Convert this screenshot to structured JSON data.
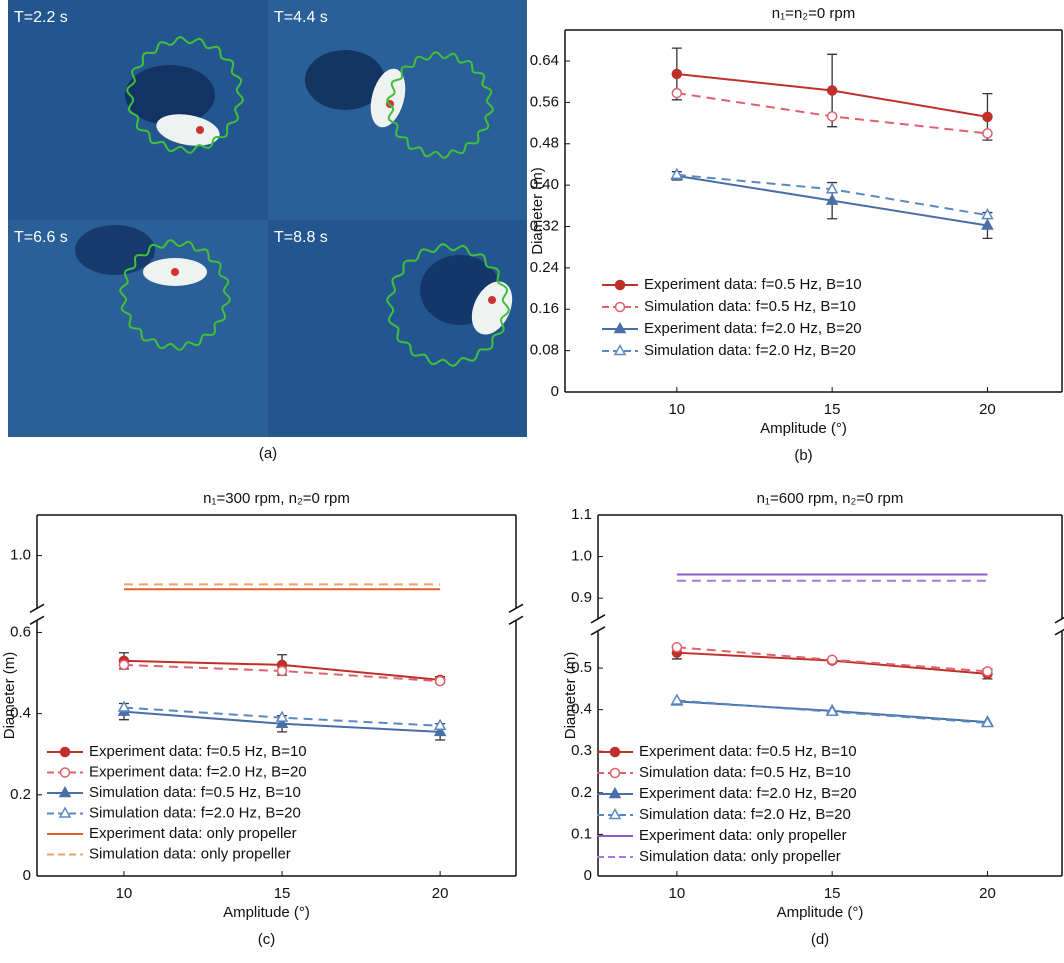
{
  "photo": {
    "labels": [
      "T=2.2 s",
      "T=4.4 s",
      "T=6.6 s",
      "T=8.8 s"
    ],
    "caption": "(a)"
  },
  "chart_data": [
    {
      "type": "line",
      "title": "n₁=n₂=0 rpm",
      "xlabel": "Amplitude (°)",
      "ylabel": "Diameter (m)",
      "caption": "(b)",
      "x": [
        10,
        15,
        20
      ],
      "xlim": [
        6.4,
        22.4
      ],
      "xticks": [
        10,
        15,
        20
      ],
      "ylim": [
        0,
        0.7
      ],
      "yticks": [
        0,
        0.08,
        0.16,
        0.24,
        0.32,
        {
          "value": 0.4,
          "label": "0.40"
        },
        0.48,
        0.56,
        0.64
      ],
      "series": [
        {
          "name": "Experiment data: f=0.5 Hz, B=10",
          "color": "#c0302a",
          "dash": false,
          "marker": "circle",
          "values": [
            0.615,
            0.583,
            0.532
          ],
          "errors": [
            0.05,
            0.07,
            0.045
          ]
        },
        {
          "name": "Simulation data: f=0.5 Hz, B=10",
          "color": "#e0606e",
          "dash": true,
          "marker": "circle-open",
          "values": [
            0.578,
            0.533,
            0.5
          ]
        },
        {
          "name": "Experiment data: f=2.0 Hz, B=20",
          "color": "#4a6ea6",
          "dash": false,
          "marker": "triangle",
          "values": [
            0.418,
            0.37,
            0.322
          ],
          "errors": [
            0.008,
            0.035,
            0.025
          ]
        },
        {
          "name": "Simulation data: f=2.0 Hz, B=20",
          "color": "#5b88c2",
          "dash": true,
          "marker": "triangle-open",
          "values": [
            0.42,
            0.392,
            0.342
          ]
        }
      ]
    },
    {
      "type": "line",
      "title": "n₁=300 rpm, n₂=0 rpm",
      "xlabel": "Amplitude (°)",
      "ylabel": "Diameter (m)",
      "caption": "(c)",
      "x": [
        10,
        15,
        20
      ],
      "xlim": [
        7.25,
        22.4
      ],
      "xticks": [
        10,
        15,
        20
      ],
      "ylim": [
        0,
        1.1
      ],
      "y_break": [
        0.62,
        0.88
      ],
      "yticks": [
        0,
        0.2,
        0.4,
        0.6,
        {
          "value": 1.0,
          "label": "1.0"
        }
      ],
      "series": [
        {
          "name": "Experiment data: f=0.5 Hz, B=10",
          "color": "#c0302a",
          "dash": false,
          "marker": "circle",
          "values": [
            0.53,
            0.52,
            0.483
          ],
          "errors": [
            0.02,
            0.025,
            0.008
          ]
        },
        {
          "name": "Experiment data: f=2.0 Hz, B=20",
          "color": "#e0606e",
          "dash": true,
          "marker": "circle-open",
          "values": [
            0.52,
            0.505,
            0.48
          ]
        },
        {
          "name": "Simulation data: f=0.5 Hz, B=10",
          "color": "#4a6ea6",
          "dash": false,
          "marker": "triangle",
          "values": [
            0.405,
            0.375,
            0.355
          ],
          "errors": [
            0.02,
            0.02,
            0.02
          ]
        },
        {
          "name": "Simulation data: f=2.0 Hz, B=20",
          "color": "#5b88c2",
          "dash": true,
          "marker": "triangle-open",
          "values": [
            0.415,
            0.39,
            0.37
          ]
        },
        {
          "name": "Experiment data: only propeller",
          "color": "#e0602a",
          "dash": false,
          "marker": "none",
          "values": [
            0.917,
            0.917,
            0.917
          ]
        },
        {
          "name": "Simulation data: only propeller",
          "color": "#f0a070",
          "dash": true,
          "marker": "none",
          "values": [
            0.929,
            0.929,
            0.929
          ]
        }
      ]
    },
    {
      "type": "line",
      "title": "n₁=600 rpm, n₂=0 rpm",
      "xlabel": "Amplitude (°)",
      "ylabel": "Diameter (m)",
      "caption": "(d)",
      "x": [
        10,
        15,
        20
      ],
      "xlim": [
        7.46,
        22.4
      ],
      "xticks": [
        10,
        15,
        20
      ],
      "ylim": [
        0,
        1.1
      ],
      "y_break": [
        0.58,
        0.86
      ],
      "yticks": [
        0,
        0.1,
        0.2,
        0.3,
        0.4,
        0.5,
        0.9,
        {
          "value": 1.0,
          "label": "1.0"
        },
        1.1
      ],
      "series": [
        {
          "name": "Experiment data: f=0.5 Hz, B=10",
          "color": "#c0302a",
          "dash": false,
          "marker": "circle",
          "values": [
            0.537,
            0.518,
            0.486
          ],
          "errors": [
            0.015,
            0.005,
            0.012
          ]
        },
        {
          "name": "Simulation data: f=0.5 Hz, B=10",
          "color": "#e0606e",
          "dash": true,
          "marker": "circle-open",
          "values": [
            0.55,
            0.52,
            0.492
          ]
        },
        {
          "name": "Experiment data: f=2.0 Hz, B=20",
          "color": "#4a6ea6",
          "dash": false,
          "marker": "triangle",
          "values": [
            0.42,
            0.397,
            0.37
          ]
        },
        {
          "name": "Simulation data: f=2.0 Hz, B=20",
          "color": "#5b88c2",
          "dash": true,
          "marker": "triangle-open",
          "values": [
            0.422,
            0.395,
            0.368
          ]
        },
        {
          "name": "Experiment data: only propeller",
          "color": "#8a5cc8",
          "dash": false,
          "marker": "none",
          "values": [
            0.957,
            0.957,
            0.957
          ]
        },
        {
          "name": "Simulation data: only propeller",
          "color": "#a77ad8",
          "dash": true,
          "marker": "none",
          "values": [
            0.942,
            0.942,
            0.942
          ]
        }
      ]
    }
  ]
}
